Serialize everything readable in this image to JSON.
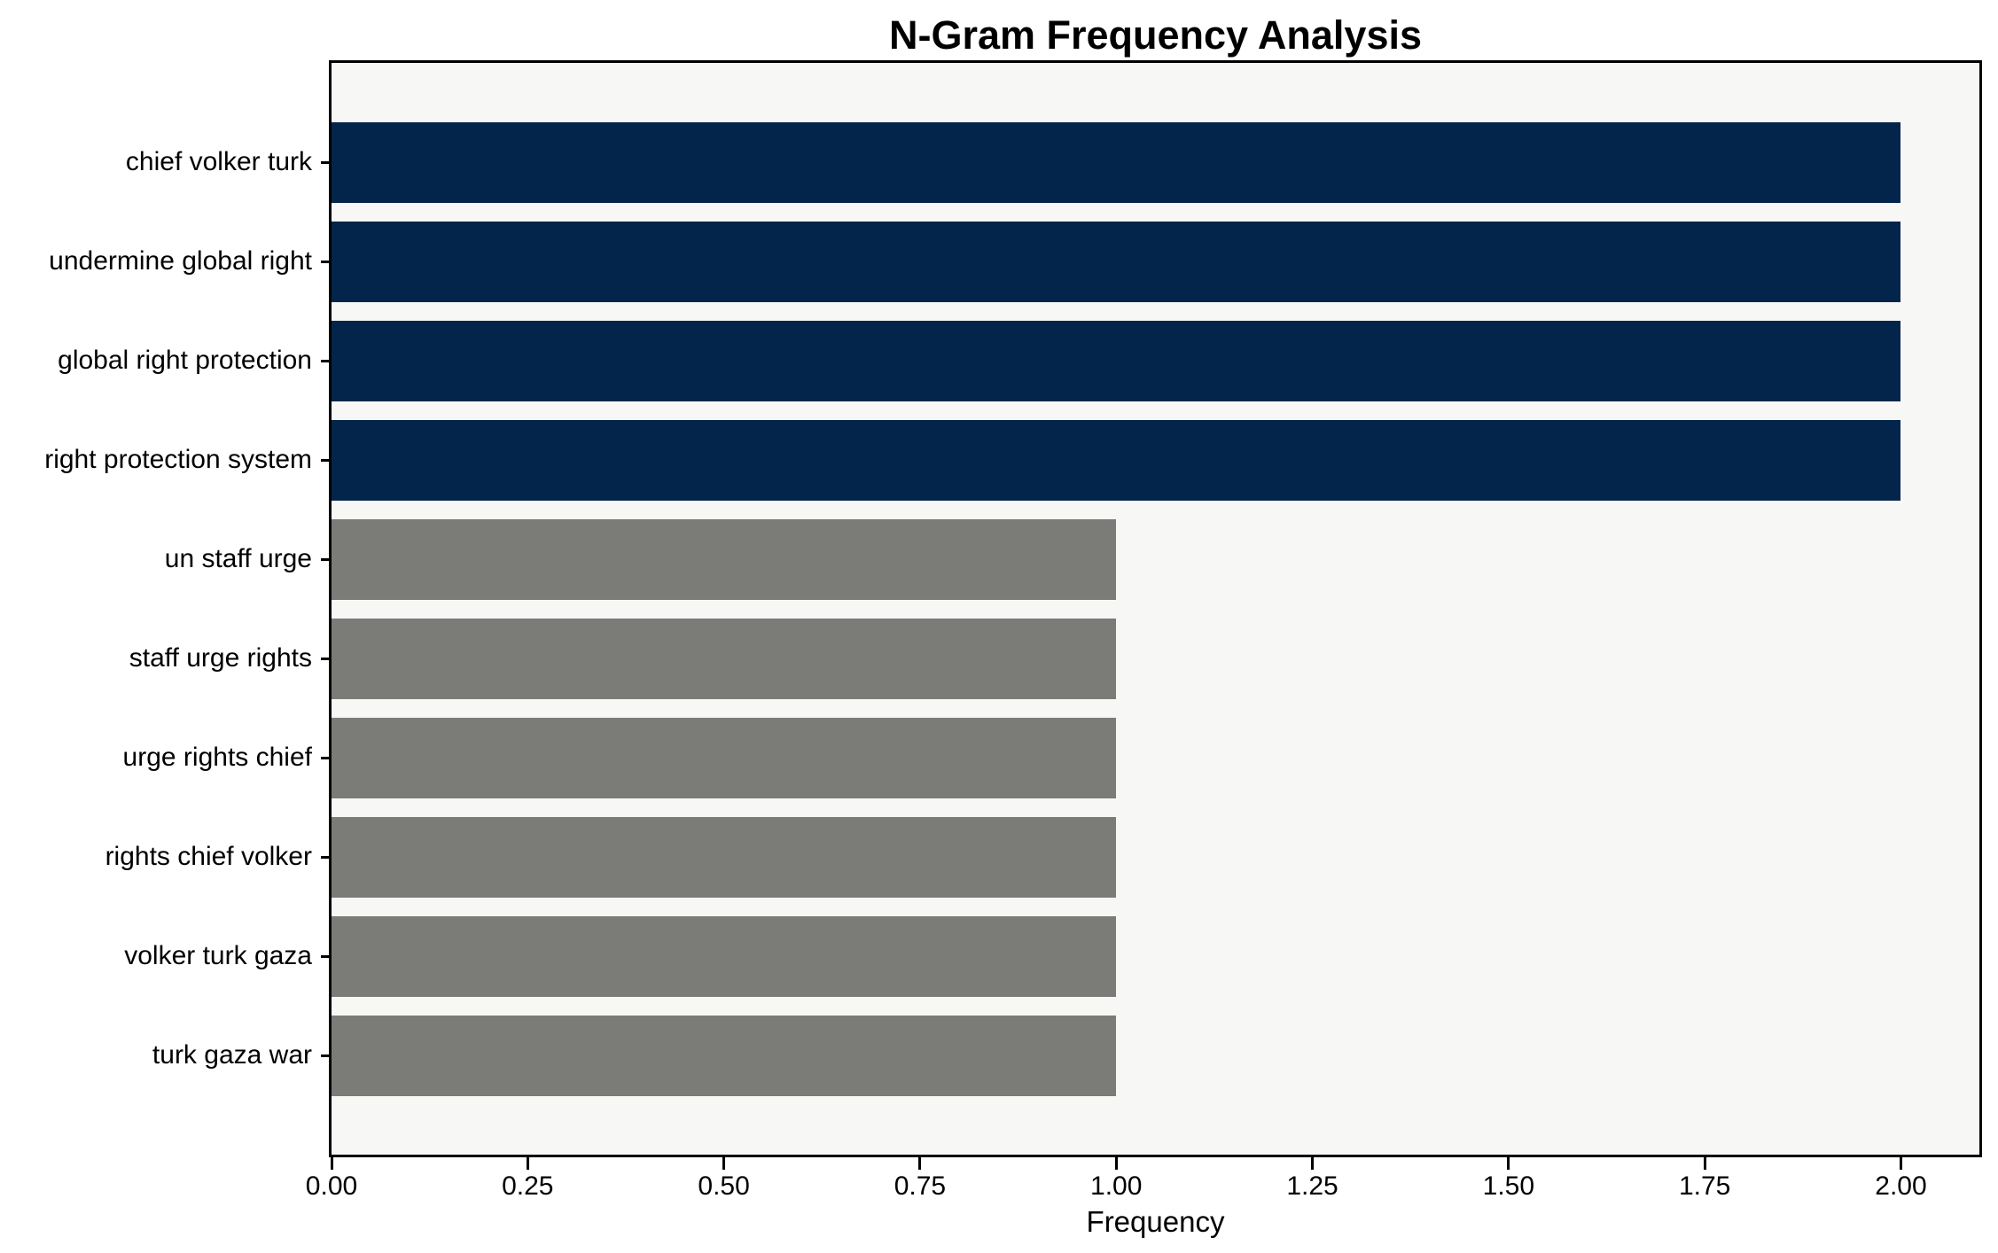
{
  "chart_data": {
    "type": "bar",
    "orientation": "horizontal",
    "title": "N-Gram Frequency Analysis",
    "xlabel": "Frequency",
    "ylabel": "",
    "categories": [
      "chief volker turk",
      "undermine global right",
      "global right protection",
      "right protection system",
      "un staff urge",
      "staff urge rights",
      "urge rights chief",
      "rights chief volker",
      "volker turk gaza",
      "turk gaza war"
    ],
    "values": [
      2,
      2,
      2,
      2,
      1,
      1,
      1,
      1,
      1,
      1
    ],
    "bar_colors": [
      "#04254B",
      "#04254B",
      "#04254B",
      "#04254B",
      "#7B7B78",
      "#7B7B78",
      "#7B7B78",
      "#7B7B78",
      "#7B7B78",
      "#7B7B78"
    ],
    "xlim": [
      0,
      2.1
    ],
    "xticks": [
      "0.00",
      "0.25",
      "0.50",
      "0.75",
      "1.00",
      "1.25",
      "1.50",
      "1.75",
      "2.00"
    ],
    "xtick_values": [
      0,
      0.25,
      0.5,
      0.75,
      1.0,
      1.25,
      1.5,
      1.75,
      2.0
    ],
    "grid": false,
    "legend": "none",
    "plot_background": "#F7F7F6",
    "spine_color": "#000000",
    "text_color": "#000000"
  }
}
